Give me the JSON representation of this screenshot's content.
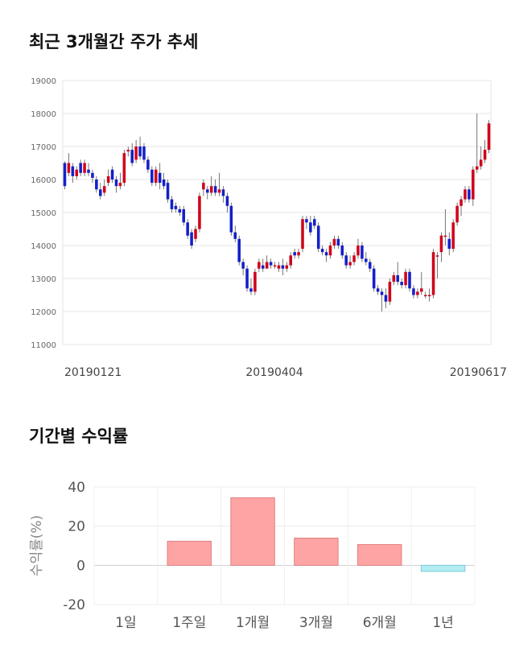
{
  "section1": {
    "title": "최근 3개월간 주가 추세"
  },
  "section2": {
    "title": "기간별 수익률"
  },
  "chart_data": [
    {
      "type": "candlestick",
      "x_labels": [
        "20190121",
        "20190404",
        "20190617"
      ],
      "ylim": [
        11000,
        19000
      ],
      "y_ticks": [
        11000,
        12000,
        13000,
        14000,
        15000,
        16000,
        17000,
        18000,
        19000
      ],
      "grid": true,
      "colors": {
        "up": "#d0021b",
        "down": "#1420c8"
      },
      "series": [
        [
          16500,
          15800,
          16550,
          15700
        ],
        [
          16200,
          16500,
          16800,
          16100
        ],
        [
          16400,
          16100,
          16500,
          15900
        ],
        [
          16100,
          16300,
          16400,
          16000
        ],
        [
          16500,
          16200,
          16600,
          16100
        ],
        [
          16200,
          16500,
          16600,
          16100
        ],
        [
          16300,
          16200,
          16500,
          16100
        ],
        [
          16200,
          16050,
          16300,
          15900
        ],
        [
          16000,
          15700,
          16100,
          15600
        ],
        [
          15700,
          15500,
          15900,
          15400
        ],
        [
          15600,
          15800,
          16000,
          15500
        ],
        [
          15900,
          16100,
          16300,
          15800
        ],
        [
          16300,
          16000,
          16400,
          15900
        ],
        [
          16000,
          15800,
          16100,
          15600
        ],
        [
          15800,
          15900,
          16200,
          15700
        ],
        [
          15900,
          16800,
          16900,
          15800
        ],
        [
          16850,
          16900,
          17000,
          16700
        ],
        [
          16900,
          16500,
          17100,
          16400
        ],
        [
          16600,
          17000,
          17200,
          16500
        ],
        [
          17000,
          16700,
          17300,
          16600
        ],
        [
          17000,
          16600,
          17100,
          16500
        ],
        [
          16600,
          16300,
          16700,
          16200
        ],
        [
          16300,
          15900,
          16400,
          15800
        ],
        [
          15900,
          16300,
          16400,
          15800
        ],
        [
          16200,
          15900,
          16500,
          15700
        ],
        [
          16000,
          15800,
          16200,
          15700
        ],
        [
          15900,
          15400,
          16000,
          15300
        ],
        [
          15400,
          15100,
          15500,
          15000
        ],
        [
          15200,
          15100,
          15300,
          15000
        ],
        [
          15100,
          15000,
          15200,
          14900
        ],
        [
          15100,
          14700,
          15200,
          14600
        ],
        [
          14700,
          14300,
          14800,
          14200
        ],
        [
          14400,
          14000,
          14500,
          13900
        ],
        [
          14200,
          14500,
          14600,
          14100
        ],
        [
          14500,
          15500,
          15600,
          14400
        ],
        [
          15700,
          15900,
          16000,
          15500
        ],
        [
          15700,
          15600,
          15800,
          15400
        ],
        [
          15600,
          15800,
          16100,
          15500
        ],
        [
          15800,
          15600,
          16000,
          15500
        ],
        [
          15600,
          15700,
          16200,
          15500
        ],
        [
          15700,
          15500,
          15800,
          15300
        ],
        [
          15500,
          15200,
          15600,
          15000
        ],
        [
          15200,
          14400,
          15300,
          14300
        ],
        [
          14400,
          14200,
          14600,
          14100
        ],
        [
          14200,
          13500,
          14300,
          13400
        ],
        [
          13500,
          13300,
          13600,
          13100
        ],
        [
          13300,
          12700,
          13400,
          12600
        ],
        [
          12700,
          12600,
          13000,
          12500
        ],
        [
          12600,
          13200,
          13300,
          12500
        ],
        [
          13300,
          13500,
          13600,
          13200
        ],
        [
          13400,
          13300,
          13600,
          13200
        ],
        [
          13300,
          13500,
          13700,
          13300
        ],
        [
          13500,
          13400,
          13600,
          13300
        ],
        [
          13400,
          13400,
          13500,
          13300
        ],
        [
          13300,
          13400,
          13500,
          13200
        ],
        [
          13400,
          13300,
          13600,
          13100
        ],
        [
          13300,
          13400,
          13500,
          13200
        ],
        [
          13400,
          13700,
          13800,
          13300
        ],
        [
          13800,
          13700,
          13900,
          13600
        ],
        [
          13700,
          13800,
          13900,
          13600
        ],
        [
          13900,
          14800,
          14900,
          13800
        ],
        [
          14800,
          14700,
          14900,
          14500
        ],
        [
          14700,
          14400,
          14900,
          14300
        ],
        [
          14800,
          14600,
          14900,
          14500
        ],
        [
          14600,
          13900,
          14700,
          13800
        ],
        [
          13900,
          13800,
          14000,
          13700
        ],
        [
          13800,
          13700,
          13900,
          13500
        ],
        [
          13700,
          14000,
          14100,
          13600
        ],
        [
          14000,
          14200,
          14300,
          13900
        ],
        [
          14200,
          14000,
          14300,
          13900
        ],
        [
          14000,
          13700,
          14100,
          13600
        ],
        [
          13700,
          13400,
          13800,
          13300
        ],
        [
          13400,
          13500,
          13700,
          13300
        ],
        [
          13500,
          13700,
          13800,
          13400
        ],
        [
          13700,
          14000,
          14200,
          13600
        ],
        [
          14000,
          13600,
          14100,
          13500
        ],
        [
          13600,
          13500,
          13800,
          13400
        ],
        [
          13500,
          13300,
          13600,
          13200
        ],
        [
          13300,
          12700,
          13400,
          12600
        ],
        [
          12700,
          12600,
          12800,
          12500
        ],
        [
          12600,
          12500,
          12700,
          12000
        ],
        [
          12500,
          12300,
          12700,
          12100
        ],
        [
          12300,
          12900,
          13000,
          12200
        ],
        [
          12900,
          13100,
          13200,
          12800
        ],
        [
          13100,
          12900,
          13500,
          12800
        ],
        [
          12900,
          12800,
          13000,
          12700
        ],
        [
          12800,
          13200,
          13300,
          12700
        ],
        [
          13200,
          12700,
          13300,
          12600
        ],
        [
          12700,
          12500,
          12800,
          12400
        ],
        [
          12500,
          12600,
          12700,
          12400
        ],
        [
          12600,
          12700,
          13200,
          12500
        ],
        [
          12500,
          12500,
          12600,
          12400
        ],
        [
          12500,
          12500,
          12700,
          12300
        ],
        [
          12500,
          13800,
          13900,
          12400
        ],
        [
          13700,
          13700,
          13800,
          13000
        ],
        [
          13800,
          14300,
          14400,
          13500
        ],
        [
          14300,
          14300,
          15100,
          14000
        ],
        [
          14200,
          13900,
          14400,
          13700
        ],
        [
          13900,
          14700,
          14800,
          13800
        ],
        [
          14700,
          15200,
          15300,
          14600
        ],
        [
          15200,
          15400,
          15500,
          14900
        ],
        [
          15400,
          15700,
          15800,
          15300
        ],
        [
          15700,
          15400,
          15800,
          15300
        ],
        [
          15400,
          16300,
          16400,
          15200
        ],
        [
          16300,
          16400,
          18000,
          16200
        ],
        [
          16400,
          16600,
          17000,
          16300
        ],
        [
          16600,
          16900,
          17200,
          16500
        ],
        [
          16900,
          17700,
          17800,
          16800
        ]
      ]
    },
    {
      "type": "bar",
      "categories": [
        "1일",
        "1주일",
        "1개월",
        "3개월",
        "6개월",
        "1년"
      ],
      "values": [
        0,
        12.3,
        34.5,
        13.9,
        10.6,
        -3.1
      ],
      "ylabel": "수익률(%)",
      "ylim": [
        -20,
        40
      ],
      "y_ticks": [
        -20,
        0,
        20,
        40
      ],
      "grid": true,
      "colors": {
        "positive": "#ffa4a4",
        "positive_border": "#e07f7f",
        "negative": "#b3ecf3",
        "negative_border": "#78cbd6"
      }
    }
  ]
}
